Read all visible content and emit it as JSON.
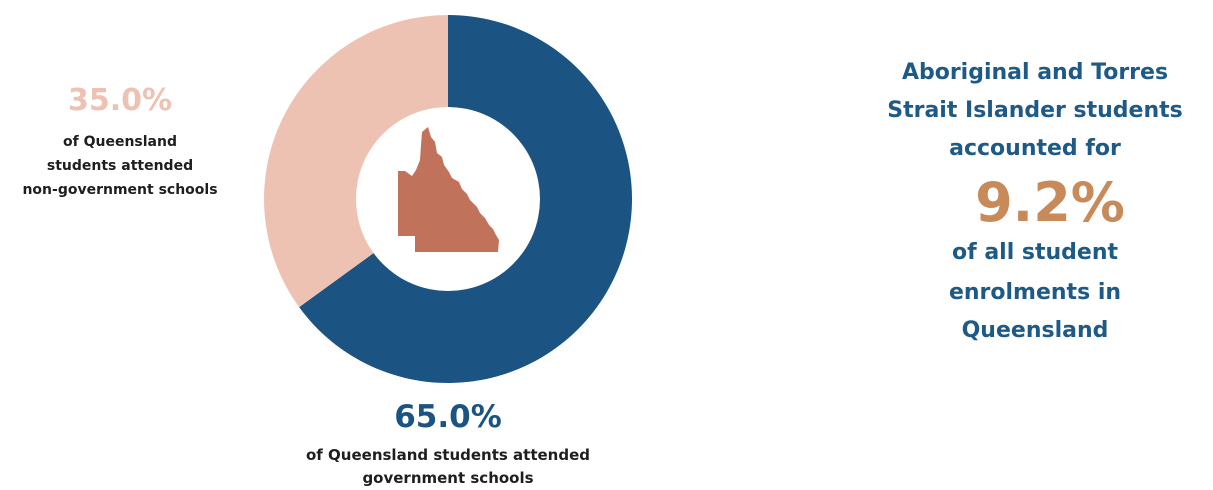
{
  "chart_data": {
    "type": "pie",
    "donut": true,
    "slices": [
      {
        "label": "of Queensland students attended government schools",
        "value": 65.0,
        "value_label": "65.0%",
        "color": "#1b5383"
      },
      {
        "label": "of Queensland students attended non-government schools",
        "value": 35.0,
        "value_label": "35.0%",
        "color": "#eec2b3"
      }
    ],
    "center_icon": "queensland-map-icon",
    "center_icon_color": "#c0735a"
  },
  "labels": {
    "non_government": {
      "value": "35.0%",
      "lines": [
        "of Queensland",
        "students attended",
        "non-government schools"
      ]
    },
    "government": {
      "value": "65.0%",
      "lines": [
        "of Queensland students attended",
        "government schools"
      ]
    }
  },
  "info": {
    "line1": "Aboriginal and Torres",
    "line2": "Strait Islander students",
    "line3": "accounted for",
    "value": "9.2%",
    "line4": "of all student",
    "line5": "enrolments in",
    "line6": "Queensland",
    "text_color": "#1e5a87",
    "value_color": "#c98a5a"
  },
  "colors": {
    "nongov_label": "#eec2b3",
    "gov_label": "#1b5383"
  }
}
